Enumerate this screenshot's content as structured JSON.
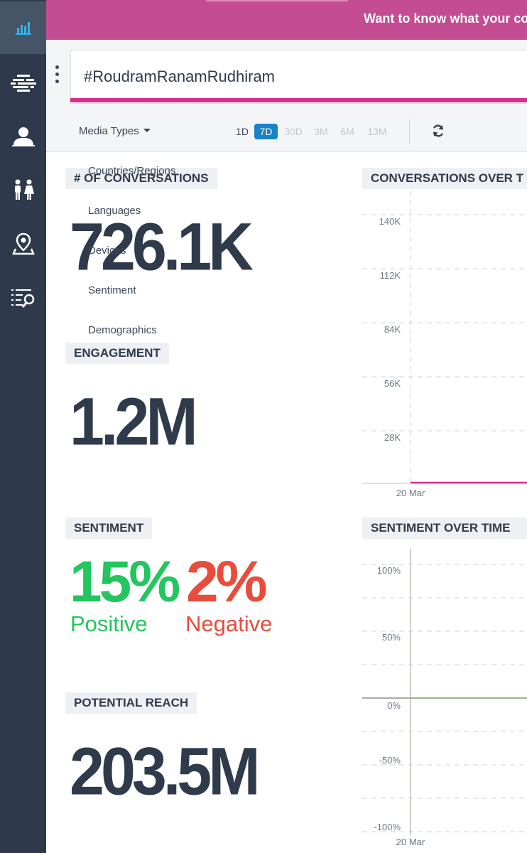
{
  "banner": {
    "text": "Want to know what your co"
  },
  "search": {
    "query": "#RoudramRanamRudhiram"
  },
  "filters": {
    "media_types": "Media Types",
    "ranges": [
      "1D",
      "7D",
      "30D",
      "3M",
      "6M",
      "13M"
    ],
    "selected_range": "7D"
  },
  "dropdown": {
    "items": [
      "Countries/Regions",
      "Languages",
      "Devices",
      "Sentiment",
      "Demographics"
    ]
  },
  "metrics": {
    "conversations": {
      "label": "# OF CONVERSATIONS",
      "value": "726.1K"
    },
    "engagement": {
      "label": "ENGAGEMENT",
      "value": "1.2M"
    },
    "sentiment": {
      "label": "SENTIMENT",
      "positive_value": "15%",
      "positive_label": "Positive",
      "positive_color": "#22c55e",
      "negative_value": "2%",
      "negative_label": "Negative",
      "negative_color": "#e74c3c"
    },
    "reach": {
      "label": "POTENTIAL REACH",
      "value": "203.5M"
    }
  },
  "charts": {
    "conversations_over_time": {
      "title": "CONVERSATIONS OVER T",
      "y_ticks": [
        "140K",
        "112K",
        "84K",
        "56K",
        "28K"
      ],
      "x_ticks": [
        "20 Mar"
      ],
      "line_color": "#d92f8a"
    },
    "sentiment_over_time": {
      "title": "SENTIMENT OVER TIME",
      "y_ticks": [
        "100%",
        "50%",
        "0%",
        "-50%",
        "-100%"
      ],
      "x_ticks": [
        "20 Mar"
      ]
    }
  },
  "sidebar": {
    "icons": [
      "bar-chart-icon",
      "stream-icon",
      "user-icon",
      "gender-icon",
      "map-pin-icon",
      "search-list-icon"
    ],
    "active_index": 0,
    "accent_color": "#3ab0e6"
  }
}
